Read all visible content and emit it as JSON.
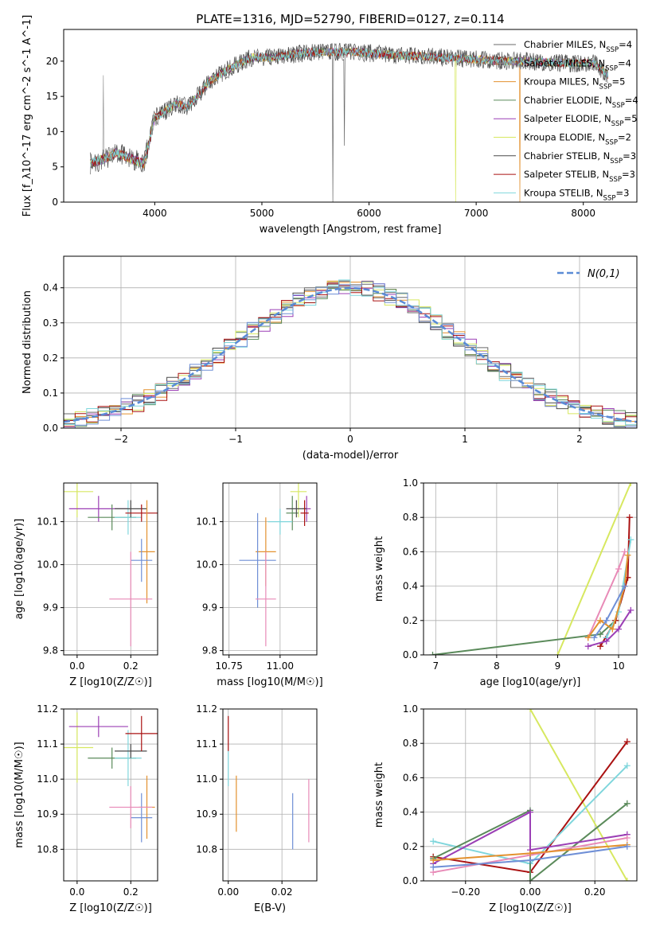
{
  "figure_title": "PLATE=1316, MJD=52790, FIBERID=0127, z=0.114",
  "colors": {
    "chabrier_miles": "#6a6a6a",
    "salpeter_miles": "#9a9a9a",
    "kroupa_miles": "#e3912f",
    "chabrier_elodie": "#5a8a5a",
    "salpeter_elodie": "#9b3fb5",
    "kroupa_elodie": "#d7e860",
    "chabrier_stelib": "#4a4a4a",
    "salpeter_stelib": "#aa1111",
    "kroupa_stelib": "#7fd6dc",
    "normal_curve": "#5a8bd6",
    "pink": "#e88ab7",
    "blue": "#6f8fd6",
    "grid": "#b0b0b0"
  },
  "chart_data": [
    {
      "id": "spectrum",
      "type": "line",
      "xlabel": "wavelength [Angstrom, rest frame]",
      "ylabel": "Flux [f_λ10^-17 erg cm^-2 s^-1 A^-1]",
      "xlim": [
        3150,
        8500
      ],
      "ylim": [
        0,
        24.5
      ],
      "xticks": [
        4000,
        5000,
        6000,
        7000,
        8000
      ],
      "yticks": [
        0,
        5,
        10,
        15,
        20
      ],
      "grid": false,
      "legend": "right",
      "continuum": {
        "x": [
          3400,
          3500,
          3650,
          3800,
          3900,
          4000,
          4100,
          4200,
          4300,
          4400,
          4500,
          4700,
          4900,
          5100,
          5300,
          5500,
          5700,
          5900,
          6100,
          6300,
          6500,
          6700,
          6900,
          7100,
          7300,
          7500,
          7700,
          7900,
          8100,
          8230
        ],
        "y": [
          5.5,
          6,
          7,
          6,
          5.5,
          12,
          13,
          14,
          13.5,
          15,
          17,
          19,
          20.5,
          20.5,
          21,
          21.3,
          21.3,
          21.3,
          21.0,
          20.8,
          20.7,
          20.5,
          20.3,
          20.2,
          20.0,
          20.0,
          19.8,
          19.7,
          19.8,
          18
        ]
      },
      "series": [
        {
          "name": "Chabrier MILES, N_SSP=4",
          "n_ssp": 4,
          "color_key": "chabrier_miles"
        },
        {
          "name": "Salpeter MILES, N_SSP=4",
          "n_ssp": 4,
          "color_key": "salpeter_miles"
        },
        {
          "name": "Kroupa MILES, N_SSP=5",
          "n_ssp": 5,
          "color_key": "kroupa_miles"
        },
        {
          "name": "Chabrier ELODIE, N_SSP=4",
          "n_ssp": 4,
          "color_key": "chabrier_elodie"
        },
        {
          "name": "Salpeter ELODIE, N_SSP=5",
          "n_ssp": 5,
          "color_key": "salpeter_elodie"
        },
        {
          "name": "Kroupa ELODIE, N_SSP=2",
          "n_ssp": 2,
          "color_key": "kroupa_elodie"
        },
        {
          "name": "Chabrier STELIB, N_SSP=3",
          "n_ssp": 3,
          "color_key": "chabrier_stelib"
        },
        {
          "name": "Salpeter STELIB, N_SSP=3",
          "n_ssp": 3,
          "color_key": "salpeter_stelib"
        },
        {
          "name": "Kroupa STELIB, N_SSP=3",
          "n_ssp": 3,
          "color_key": "kroupa_stelib"
        }
      ]
    },
    {
      "id": "residuals",
      "type": "line",
      "xlabel": "(data-model)/error",
      "ylabel": "Normed distribution",
      "xlim": [
        -2.5,
        2.5
      ],
      "ylim": [
        0,
        0.49
      ],
      "xticks": [
        -2,
        -1,
        0,
        1,
        2
      ],
      "yticks": [
        0.0,
        0.1,
        0.2,
        0.3,
        0.4
      ],
      "grid": true,
      "legend": "top-right",
      "legend_label": "N(0,1)",
      "bin_width": 0.1
    },
    {
      "id": "age_vs_Z",
      "type": "scatter",
      "xlabel": "Z [log10(Z/Z☉)]",
      "ylabel": "age  [log10(age/yr)]",
      "xlim": [
        -0.05,
        0.3
      ],
      "ylim": [
        9.79,
        10.19
      ],
      "xticks": [
        0.0,
        0.2
      ],
      "yticks": [
        9.8,
        9.9,
        10.0,
        10.1
      ],
      "grid": true,
      "points": [
        {
          "x": 0.0,
          "y": 10.17,
          "xerr": 0.06,
          "yerr": 0.06,
          "c": "kroupa_elodie"
        },
        {
          "x": 0.08,
          "y": 10.13,
          "xerr": 0.11,
          "yerr": 0.03,
          "c": "salpeter_elodie"
        },
        {
          "x": 0.13,
          "y": 10.11,
          "xerr": 0.09,
          "yerr": 0.03,
          "c": "chabrier_elodie"
        },
        {
          "x": 0.19,
          "y": 10.11,
          "xerr": 0.05,
          "yerr": 0.04,
          "c": "kroupa_stelib"
        },
        {
          "x": 0.2,
          "y": 10.13,
          "xerr": 0.06,
          "yerr": 0.02,
          "c": "chabrier_stelib"
        },
        {
          "x": 0.24,
          "y": 10.12,
          "xerr": 0.06,
          "yerr": 0.02,
          "c": "salpeter_stelib"
        },
        {
          "x": 0.26,
          "y": 10.03,
          "xerr": 0.03,
          "yerr": 0.12,
          "c": "kroupa_miles"
        },
        {
          "x": 0.24,
          "y": 10.01,
          "xerr": 0.04,
          "yerr": 0.05,
          "c": "blue"
        },
        {
          "x": 0.2,
          "y": 9.92,
          "xerr": 0.08,
          "yerr": 0.11,
          "c": "pink"
        }
      ]
    },
    {
      "id": "age_vs_mass",
      "type": "scatter",
      "xlabel": "mass [log10(M/M☉)]",
      "ylabel": "",
      "xlim": [
        10.72,
        11.18
      ],
      "ylim": [
        9.79,
        10.19
      ],
      "xticks": [
        10.75,
        11.0
      ],
      "yticks": [
        9.8,
        9.9,
        10.0,
        10.1
      ],
      "grid": true,
      "points": [
        {
          "x": 11.09,
          "y": 10.17,
          "xerr": 0.04,
          "yerr": 0.06,
          "c": "kroupa_elodie"
        },
        {
          "x": 11.13,
          "y": 10.13,
          "xerr": 0.02,
          "yerr": 0.03,
          "c": "salpeter_elodie"
        },
        {
          "x": 11.06,
          "y": 10.12,
          "xerr": 0.03,
          "yerr": 0.04,
          "c": "chabrier_elodie"
        },
        {
          "x": 11.08,
          "y": 10.13,
          "xerr": 0.05,
          "yerr": 0.02,
          "c": "chabrier_stelib"
        },
        {
          "x": 11.12,
          "y": 10.12,
          "xerr": 0.02,
          "yerr": 0.03,
          "c": "salpeter_stelib"
        },
        {
          "x": 11.0,
          "y": 10.1,
          "xerr": 0.06,
          "yerr": 0.03,
          "c": "kroupa_stelib"
        },
        {
          "x": 10.93,
          "y": 10.03,
          "xerr": 0.05,
          "yerr": 0.08,
          "c": "kroupa_miles"
        },
        {
          "x": 10.89,
          "y": 10.01,
          "xerr": 0.09,
          "yerr": 0.11,
          "c": "blue"
        },
        {
          "x": 10.93,
          "y": 9.92,
          "xerr": 0.05,
          "yerr": 0.11,
          "c": "pink"
        }
      ]
    },
    {
      "id": "weight_vs_age",
      "type": "line",
      "xlabel": "age  [log10(age/yr)]",
      "ylabel": "mass weight",
      "xlim": [
        6.8,
        10.3
      ],
      "ylim": [
        0.0,
        1.0
      ],
      "xticks": [
        7,
        8,
        9,
        10
      ],
      "yticks": [
        0.0,
        0.2,
        0.4,
        0.6,
        0.8,
        1.0
      ],
      "grid": true,
      "series": [
        {
          "c": "kroupa_elodie",
          "x": [
            9.0,
            10.2
          ],
          "y": [
            0.0,
            1.0
          ]
        },
        {
          "c": "chabrier_elodie",
          "x": [
            6.95,
            9.7,
            9.95,
            10.15
          ],
          "y": [
            0.0,
            0.12,
            0.2,
            0.45
          ]
        },
        {
          "c": "salpeter_stelib",
          "x": [
            9.7,
            9.95,
            10.15,
            10.18
          ],
          "y": [
            0.05,
            0.2,
            0.45,
            0.8
          ]
        },
        {
          "c": "kroupa_stelib",
          "x": [
            9.8,
            10.0,
            10.2
          ],
          "y": [
            0.1,
            0.25,
            0.67
          ]
        },
        {
          "c": "pink",
          "x": [
            9.5,
            10.0,
            10.1
          ],
          "y": [
            0.1,
            0.5,
            0.6
          ]
        },
        {
          "c": "kroupa_miles",
          "x": [
            9.5,
            9.7,
            9.9,
            10.1,
            10.15
          ],
          "y": [
            0.1,
            0.2,
            0.15,
            0.4,
            0.58
          ]
        },
        {
          "c": "salpeter_elodie",
          "x": [
            9.5,
            9.8,
            10.0,
            10.2
          ],
          "y": [
            0.05,
            0.08,
            0.15,
            0.26
          ]
        },
        {
          "c": "blue",
          "x": [
            9.6,
            9.8,
            10.1
          ],
          "y": [
            0.1,
            0.2,
            0.4
          ]
        }
      ]
    },
    {
      "id": "mass_vs_Z",
      "type": "scatter",
      "xlabel": "Z [log10(Z/Z☉)]",
      "ylabel": "mass [log10(M/M☉)]",
      "xlim": [
        -0.05,
        0.3
      ],
      "ylim": [
        10.71,
        11.2
      ],
      "xticks": [
        0.0,
        0.2
      ],
      "yticks": [
        10.8,
        10.9,
        11.0,
        11.1,
        11.2
      ],
      "grid": true,
      "points": [
        {
          "x": 0.0,
          "y": 11.09,
          "xerr": 0.06,
          "yerr": 0.1,
          "c": "kroupa_elodie"
        },
        {
          "x": 0.08,
          "y": 11.15,
          "xerr": 0.11,
          "yerr": 0.03,
          "c": "salpeter_elodie"
        },
        {
          "x": 0.13,
          "y": 11.06,
          "xerr": 0.09,
          "yerr": 0.03,
          "c": "chabrier_elodie"
        },
        {
          "x": 0.19,
          "y": 11.06,
          "xerr": 0.05,
          "yerr": 0.08,
          "c": "kroupa_stelib"
        },
        {
          "x": 0.2,
          "y": 11.08,
          "xerr": 0.06,
          "yerr": 0.02,
          "c": "chabrier_stelib"
        },
        {
          "x": 0.24,
          "y": 11.13,
          "xerr": 0.06,
          "yerr": 0.05,
          "c": "salpeter_stelib"
        },
        {
          "x": 0.26,
          "y": 10.92,
          "xerr": 0.03,
          "yerr": 0.09,
          "c": "kroupa_miles"
        },
        {
          "x": 0.24,
          "y": 10.89,
          "xerr": 0.04,
          "yerr": 0.07,
          "c": "blue"
        },
        {
          "x": 0.2,
          "y": 10.92,
          "xerr": 0.08,
          "yerr": 0.06,
          "c": "pink"
        }
      ]
    },
    {
      "id": "mass_vs_ebv",
      "type": "scatter",
      "xlabel": "E(B-V)",
      "ylabel": "",
      "xlim": [
        -0.002,
        0.033
      ],
      "ylim": [
        10.71,
        11.2
      ],
      "xticks": [
        0.0,
        0.02
      ],
      "yticks": [
        10.8,
        10.9,
        11.0,
        11.1,
        11.2
      ],
      "grid": true,
      "points": [
        {
          "x": 0.0,
          "y": 11.13,
          "xerr": 0,
          "yerr": 0.05,
          "c": "salpeter_stelib"
        },
        {
          "x": 0.0,
          "y": 11.03,
          "xerr": 0,
          "yerr": 0.05,
          "c": "kroupa_stelib"
        },
        {
          "x": 0.003,
          "y": 10.93,
          "xerr": 0,
          "yerr": 0.08,
          "c": "kroupa_miles"
        },
        {
          "x": 0.024,
          "y": 10.88,
          "xerr": 0,
          "yerr": 0.08,
          "c": "blue"
        },
        {
          "x": 0.03,
          "y": 10.91,
          "xerr": 0,
          "yerr": 0.09,
          "c": "pink"
        }
      ]
    },
    {
      "id": "weight_vs_Z",
      "type": "line",
      "xlabel": "Z [log10(Z/Z☉)]",
      "ylabel": "mass weight",
      "xlim": [
        -0.33,
        0.33
      ],
      "ylim": [
        0.0,
        1.0
      ],
      "xticks": [
        -0.2,
        0.0,
        0.2
      ],
      "yticks": [
        0.0,
        0.2,
        0.4,
        0.6,
        0.8,
        1.0
      ],
      "grid": true,
      "series": [
        {
          "c": "kroupa_elodie",
          "x": [
            0.0,
            0.3
          ],
          "y": [
            1.0,
            0.0
          ]
        },
        {
          "c": "salpeter_stelib",
          "x": [
            -0.3,
            0.0,
            0.3
          ],
          "y": [
            0.14,
            0.05,
            0.81
          ]
        },
        {
          "c": "kroupa_stelib",
          "x": [
            -0.3,
            0.0,
            0.3
          ],
          "y": [
            0.23,
            0.1,
            0.67
          ]
        },
        {
          "c": "chabrier_elodie",
          "x": [
            -0.3,
            0.0,
            0.0,
            0.3
          ],
          "y": [
            0.13,
            0.41,
            0.0,
            0.45
          ]
        },
        {
          "c": "salpeter_elodie",
          "x": [
            -0.3,
            0.0,
            0.0,
            0.3
          ],
          "y": [
            0.1,
            0.4,
            0.18,
            0.27
          ]
        },
        {
          "c": "pink",
          "x": [
            -0.3,
            0.0,
            0.3
          ],
          "y": [
            0.05,
            0.15,
            0.25
          ]
        },
        {
          "c": "kroupa_miles",
          "x": [
            -0.3,
            0.0,
            0.3
          ],
          "y": [
            0.12,
            0.16,
            0.21
          ]
        },
        {
          "c": "blue",
          "x": [
            -0.3,
            0.0,
            0.3
          ],
          "y": [
            0.08,
            0.12,
            0.2
          ]
        }
      ]
    }
  ]
}
